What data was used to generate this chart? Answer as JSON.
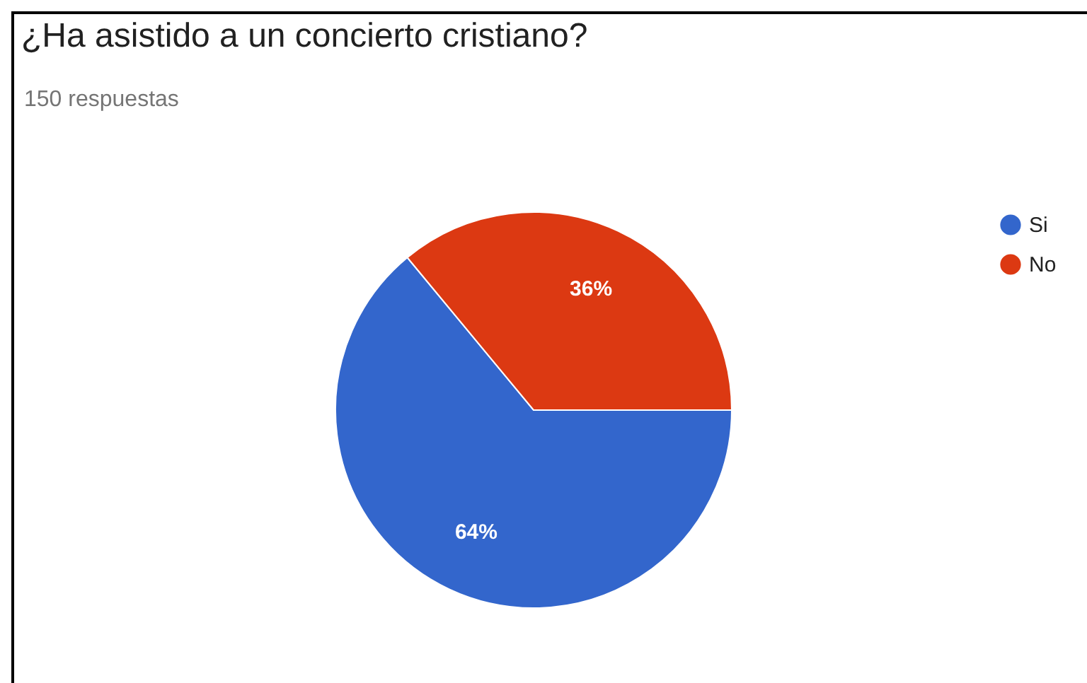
{
  "chart_data": {
    "type": "pie",
    "title": "¿Ha asistido a un concierto cristiano?",
    "subtitle": "150 respuestas",
    "categories": [
      "Si",
      "No"
    ],
    "values": [
      64,
      36
    ],
    "colors": [
      "#3366cc",
      "#dc3912"
    ],
    "value_labels": [
      "64%",
      "36%"
    ],
    "legend": "right"
  }
}
